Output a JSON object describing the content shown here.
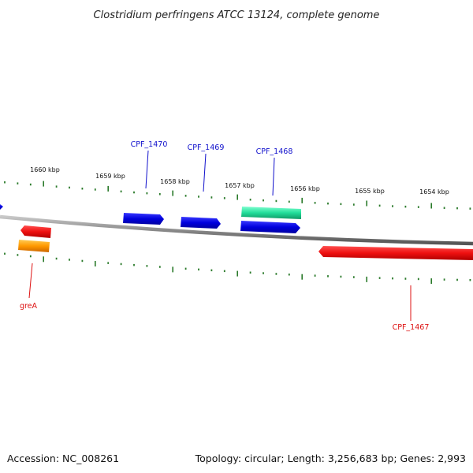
{
  "title": "Clostridium perfringens ATCC 13124, complete genome",
  "footer": {
    "accession": "Accession: NC_008261",
    "summary": "Topology: circular; Length: 3,256,683 bp; Genes: 2,993"
  },
  "colors": {
    "backbone": "#8a8a8a",
    "ticks": "#2a7a2a",
    "forward_gene": "#1010dd",
    "reverse_gene": "#ee1111",
    "rna_gene": "#22dd99",
    "other_gene": "#ff9900",
    "forward_label": "#1010cc",
    "reverse_label": "#dd1111"
  },
  "scale": {
    "labels": [
      "1660 kbp",
      "1659 kbp",
      "1658 kbp",
      "1657 kbp",
      "1656 kbp",
      "1655 kbp",
      "1654 kbp"
    ]
  },
  "genes": {
    "labeled": [
      {
        "id": "CPF_1470",
        "strand": "forward",
        "label": "CPF_1470"
      },
      {
        "id": "CPF_1469",
        "strand": "forward",
        "label": "CPF_1469"
      },
      {
        "id": "CPF_1468",
        "strand": "forward",
        "label": "CPF_1468"
      },
      {
        "id": "greA",
        "strand": "reverse",
        "label": "greA"
      },
      {
        "id": "CPF_1467",
        "strand": "reverse",
        "label": "CPF_1467"
      }
    ]
  }
}
